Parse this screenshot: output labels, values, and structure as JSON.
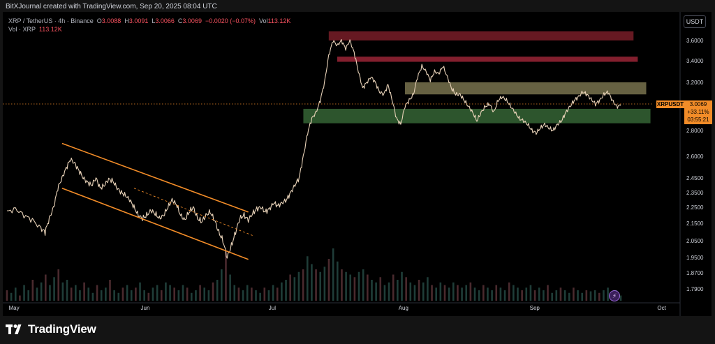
{
  "header": {
    "caption": "BitXJournal created with TradingView.com, Sep 20, 2025 08:04 UTC"
  },
  "legend": {
    "symbol": "XRP / TetherUS · 4h · Binance",
    "o_label": "O",
    "o": "3.0088",
    "h_label": "H",
    "h": "3.0091",
    "l_label": "L",
    "l": "3.0066",
    "c_label": "C",
    "c": "3.0069",
    "change": "−0.0020 (−0.07%)",
    "vol_label": "Vol",
    "vol": "113.12K",
    "vol_row_label": "Vol · XRP",
    "vol_row_value": "113.12K"
  },
  "price_scale": {
    "currency": "USDT",
    "ticks": [
      {
        "label": "3.6000",
        "v": 3.6
      },
      {
        "label": "3.4000",
        "v": 3.4
      },
      {
        "label": "3.2000",
        "v": 3.2
      },
      {
        "label": "2.8000",
        "v": 2.8
      },
      {
        "label": "2.6000",
        "v": 2.6
      },
      {
        "label": "2.4500",
        "v": 2.45
      },
      {
        "label": "2.3500",
        "v": 2.35
      },
      {
        "label": "2.2500",
        "v": 2.25
      },
      {
        "label": "2.1500",
        "v": 2.15
      },
      {
        "label": "2.0500",
        "v": 2.05
      },
      {
        "label": "1.9500",
        "v": 1.95
      },
      {
        "label": "1.8700",
        "v": 1.87
      },
      {
        "label": "1.7900",
        "v": 1.79
      }
    ]
  },
  "time_scale": {
    "ticks": [
      {
        "label": "May",
        "t": 0
      },
      {
        "label": "Jun",
        "t": 31
      },
      {
        "label": "Jul",
        "t": 61
      },
      {
        "label": "Aug",
        "t": 92
      },
      {
        "label": "Sep",
        "t": 123
      },
      {
        "label": "Oct",
        "t": 153
      }
    ]
  },
  "current_price": {
    "symbol": "XRPUSDT",
    "price": "3.0069",
    "change_pct": "+33.11%",
    "countdown": "03:55:21",
    "value": 3.0069
  },
  "chart_data": {
    "type": "line",
    "title": "",
    "xlabel": "",
    "ylabel": "",
    "x_unit": "days since May 1, 2025",
    "ylim": [
      1.74,
      3.78
    ],
    "xlim": [
      -1,
      159
    ],
    "series": [
      {
        "name": "",
        "points": [
          [
            0,
            2.22
          ],
          [
            2,
            2.24
          ],
          [
            4,
            2.2
          ],
          [
            6,
            2.17
          ],
          [
            8,
            2.12
          ],
          [
            9,
            2.1
          ],
          [
            10,
            2.18
          ],
          [
            11,
            2.25
          ],
          [
            12,
            2.38
          ],
          [
            13,
            2.45
          ],
          [
            14,
            2.52
          ],
          [
            15,
            2.58
          ],
          [
            16,
            2.55
          ],
          [
            17,
            2.5
          ],
          [
            18,
            2.45
          ],
          [
            19,
            2.42
          ],
          [
            20,
            2.4
          ],
          [
            21,
            2.45
          ],
          [
            22,
            2.38
          ],
          [
            23,
            2.4
          ],
          [
            24,
            2.44
          ],
          [
            25,
            2.43
          ],
          [
            26,
            2.38
          ],
          [
            27,
            2.35
          ],
          [
            28,
            2.33
          ],
          [
            29,
            2.3
          ],
          [
            30,
            2.25
          ],
          [
            31,
            2.2
          ],
          [
            32,
            2.18
          ],
          [
            33,
            2.2
          ],
          [
            34,
            2.23
          ],
          [
            35,
            2.21
          ],
          [
            36,
            2.18
          ],
          [
            37,
            2.2
          ],
          [
            38,
            2.25
          ],
          [
            39,
            2.3
          ],
          [
            40,
            2.27
          ],
          [
            41,
            2.2
          ],
          [
            42,
            2.17
          ],
          [
            43,
            2.22
          ],
          [
            44,
            2.25
          ],
          [
            45,
            2.18
          ],
          [
            46,
            2.16
          ],
          [
            47,
            2.2
          ],
          [
            48,
            2.22
          ],
          [
            49,
            2.17
          ],
          [
            50,
            2.1
          ],
          [
            51,
            2.05
          ],
          [
            52,
            1.95
          ],
          [
            53,
            2.02
          ],
          [
            54,
            2.1
          ],
          [
            55,
            2.18
          ],
          [
            56,
            2.2
          ],
          [
            57,
            2.17
          ],
          [
            58,
            2.21
          ],
          [
            59,
            2.24
          ],
          [
            60,
            2.25
          ],
          [
            61,
            2.22
          ],
          [
            62,
            2.24
          ],
          [
            63,
            2.28
          ],
          [
            64,
            2.26
          ],
          [
            65,
            2.28
          ],
          [
            66,
            2.3
          ],
          [
            67,
            2.35
          ],
          [
            68,
            2.4
          ],
          [
            69,
            2.45
          ],
          [
            70,
            2.6
          ],
          [
            71,
            2.78
          ],
          [
            72,
            2.9
          ],
          [
            73,
            2.95
          ],
          [
            74,
            3.05
          ],
          [
            75,
            3.2
          ],
          [
            76,
            3.45
          ],
          [
            77,
            3.6
          ],
          [
            78,
            3.55
          ],
          [
            79,
            3.6
          ],
          [
            80,
            3.52
          ],
          [
            81,
            3.6
          ],
          [
            82,
            3.48
          ],
          [
            83,
            3.3
          ],
          [
            84,
            3.15
          ],
          [
            85,
            3.2
          ],
          [
            86,
            3.25
          ],
          [
            87,
            3.2
          ],
          [
            88,
            3.12
          ],
          [
            89,
            3.1
          ],
          [
            90,
            3.18
          ],
          [
            91,
            3.05
          ],
          [
            92,
            2.9
          ],
          [
            93,
            2.85
          ],
          [
            94,
            3.0
          ],
          [
            95,
            3.05
          ],
          [
            96,
            3.1
          ],
          [
            97,
            3.25
          ],
          [
            98,
            3.35
          ],
          [
            99,
            3.3
          ],
          [
            100,
            3.22
          ],
          [
            101,
            3.3
          ],
          [
            102,
            3.28
          ],
          [
            103,
            3.35
          ],
          [
            104,
            3.25
          ],
          [
            105,
            3.15
          ],
          [
            106,
            3.1
          ],
          [
            107,
            3.1
          ],
          [
            108,
            3.05
          ],
          [
            109,
            3.0
          ],
          [
            110,
            2.95
          ],
          [
            111,
            2.88
          ],
          [
            112,
            2.95
          ],
          [
            113,
            3.0
          ],
          [
            114,
            3.02
          ],
          [
            115,
            2.95
          ],
          [
            116,
            3.05
          ],
          [
            117,
            3.08
          ],
          [
            118,
            3.05
          ],
          [
            119,
            3.0
          ],
          [
            120,
            2.95
          ],
          [
            121,
            2.9
          ],
          [
            122,
            2.88
          ],
          [
            123,
            2.85
          ],
          [
            124,
            2.8
          ],
          [
            125,
            2.78
          ],
          [
            126,
            2.82
          ],
          [
            127,
            2.85
          ],
          [
            128,
            2.82
          ],
          [
            129,
            2.8
          ],
          [
            130,
            2.85
          ],
          [
            131,
            2.88
          ],
          [
            132,
            2.95
          ],
          [
            133,
            3.0
          ],
          [
            134,
            3.05
          ],
          [
            135,
            3.08
          ],
          [
            136,
            3.12
          ],
          [
            137,
            3.1
          ],
          [
            138,
            3.06
          ],
          [
            139,
            3.02
          ],
          [
            140,
            3.05
          ],
          [
            141,
            3.1
          ],
          [
            142,
            3.12
          ],
          [
            143,
            3.05
          ],
          [
            144,
            3.0
          ],
          [
            145,
            3.0069
          ]
        ]
      }
    ],
    "zones": [
      {
        "name": "",
        "t0": 76,
        "t1": 148,
        "y0": 3.6,
        "y1": 3.69,
        "color": "#6b1a24"
      },
      {
        "name": "",
        "t0": 78,
        "t1": 149,
        "y0": 3.39,
        "y1": 3.44,
        "color": "#8a2130"
      },
      {
        "name": "",
        "t0": 94,
        "t1": 151,
        "y0": 3.1,
        "y1": 3.2,
        "color": "#6b6646"
      },
      {
        "name": "",
        "t0": 70,
        "t1": 152,
        "y0": 2.86,
        "y1": 2.98,
        "color": "#2f5a2f"
      }
    ],
    "channel_lines": [
      {
        "name": "",
        "t0": 13,
        "y0": 2.7,
        "t1": 57,
        "y1": 2.22,
        "style": "solid"
      },
      {
        "name": "",
        "t0": 13,
        "y0": 2.38,
        "t1": 57,
        "y1": 1.94,
        "style": "solid"
      },
      {
        "name": "",
        "t0": 30,
        "y0": 2.38,
        "t1": 58,
        "y1": 2.08,
        "style": "dashed"
      }
    ],
    "volume": [
      0.2,
      0.15,
      0.25,
      0.1,
      0.3,
      0.2,
      0.4,
      0.25,
      0.35,
      0.5,
      0.3,
      0.45,
      0.6,
      0.35,
      0.4,
      0.25,
      0.3,
      0.2,
      0.35,
      0.25,
      0.15,
      0.3,
      0.2,
      0.25,
      0.4,
      0.2,
      0.15,
      0.25,
      0.3,
      0.2,
      0.25,
      0.35,
      0.2,
      0.15,
      0.25,
      0.3,
      0.2,
      0.35,
      0.3,
      0.25,
      0.2,
      0.3,
      0.25,
      0.15,
      0.2,
      0.3,
      0.25,
      0.2,
      0.35,
      0.4,
      0.6,
      0.95,
      0.5,
      0.3,
      0.25,
      0.2,
      0.3,
      0.25,
      0.2,
      0.15,
      0.25,
      0.2,
      0.3,
      0.25,
      0.35,
      0.4,
      0.5,
      0.45,
      0.55,
      0.6,
      0.85,
      0.7,
      0.6,
      0.55,
      0.65,
      0.8,
      1.0,
      0.75,
      0.6,
      0.55,
      0.5,
      0.45,
      0.55,
      0.6,
      0.5,
      0.4,
      0.35,
      0.45,
      0.3,
      0.35,
      0.5,
      0.4,
      0.55,
      0.45,
      0.35,
      0.3,
      0.4,
      0.35,
      0.45,
      0.3,
      0.25,
      0.35,
      0.3,
      0.25,
      0.35,
      0.3,
      0.25,
      0.3,
      0.35,
      0.25,
      0.2,
      0.3,
      0.25,
      0.2,
      0.3,
      0.25,
      0.2,
      0.35,
      0.3,
      0.25,
      0.2,
      0.25,
      0.3,
      0.2,
      0.25,
      0.2,
      0.3,
      0.15,
      0.2,
      0.25,
      0.2,
      0.15,
      0.25,
      0.2,
      0.15,
      0.2,
      0.18,
      0.2,
      0.15,
      0.2,
      0.25,
      0.15,
      0.2,
      0.1
    ]
  },
  "branding": {
    "logo_text": "TradingView"
  }
}
